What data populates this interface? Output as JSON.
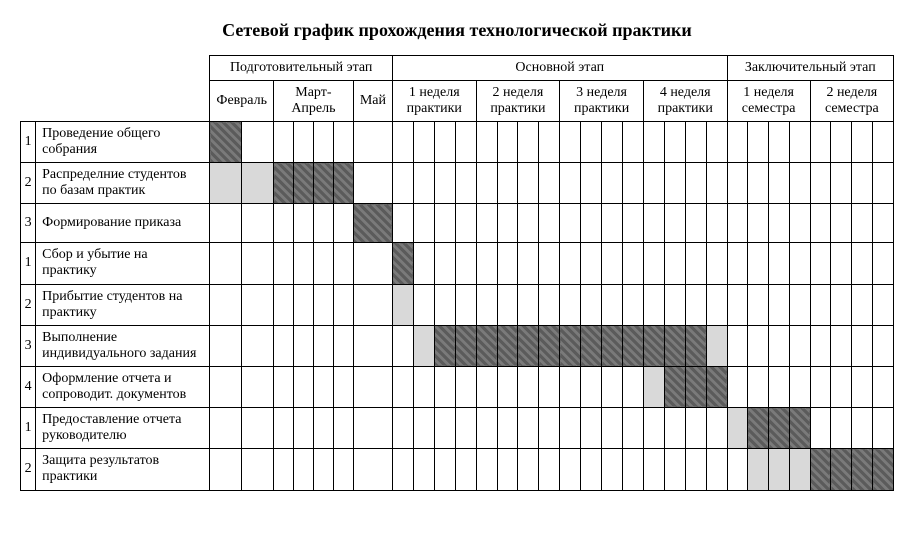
{
  "title": "Сетевой график прохождения технологической практики",
  "stages": [
    {
      "label": "Подготовительный этап",
      "periods": [
        {
          "label": "Февраль",
          "subcols": 2
        },
        {
          "label": "Март-Апрель",
          "subcols": 4
        },
        {
          "label": "Май",
          "subcols": 1
        }
      ]
    },
    {
      "label": "Основной этап",
      "periods": [
        {
          "label": "1 неделя практики",
          "subcols": 4
        },
        {
          "label": "2 неделя практики",
          "subcols": 4
        },
        {
          "label": "3 неделя практики",
          "subcols": 4
        },
        {
          "label": "4 неделя практики",
          "subcols": 4
        }
      ]
    },
    {
      "label": "Заключительный этап",
      "periods": [
        {
          "label": "1 неделя семестра",
          "subcols": 4
        },
        {
          "label": "2 неделя семестра",
          "subcols": 4
        }
      ]
    }
  ],
  "total_subcols": 31,
  "tasks": [
    {
      "num": "1",
      "label": "Проведение общего собрания",
      "fill": {
        "0": "dark"
      }
    },
    {
      "num": "2",
      "label": "Распределние студентов по базам практик",
      "fill": {
        "0": "light",
        "1": "light",
        "2": "dark",
        "3": "dark",
        "4": "dark",
        "5": "dark"
      }
    },
    {
      "num": "3",
      "label": "Формирование приказа",
      "fill": {
        "6": "dark"
      }
    },
    {
      "num": "1",
      "label": "Сбор и убытие на практику",
      "fill": {
        "7": "dark"
      }
    },
    {
      "num": "2",
      "label": "Прибытие студентов на практику",
      "fill": {
        "7": "light"
      }
    },
    {
      "num": "3",
      "label": "Выполнение индивидуального задания",
      "fill": {
        "8": "light",
        "9": "dark",
        "10": "dark",
        "11": "dark",
        "12": "dark",
        "13": "dark",
        "14": "dark",
        "15": "dark",
        "16": "dark",
        "17": "dark",
        "18": "dark",
        "19": "dark",
        "20": "dark",
        "21": "dark",
        "22": "light"
      }
    },
    {
      "num": "4",
      "label": "Оформление отчета и сопроводит. документов",
      "fill": {
        "19": "light",
        "20": "dark",
        "21": "dark",
        "22": "dark"
      }
    },
    {
      "num": "1",
      "label": "Предоставление отчета руководителю",
      "fill": {
        "23": "light",
        "24": "dark",
        "25": "dark",
        "26": "dark"
      }
    },
    {
      "num": "2",
      "label": "Защита результатов практики",
      "fill": {
        "24": "light",
        "25": "light",
        "26": "light",
        "27": "dark",
        "28": "dark",
        "29": "dark",
        "30": "dark"
      }
    }
  ],
  "colors": {
    "dark": "#7a7a7a",
    "light": "#d9d9d9",
    "border": "#000000",
    "background": "#ffffff",
    "text": "#000000"
  },
  "fonts": {
    "family": "Times New Roman",
    "title_size_pt": 14,
    "cell_size_pt": 11
  }
}
